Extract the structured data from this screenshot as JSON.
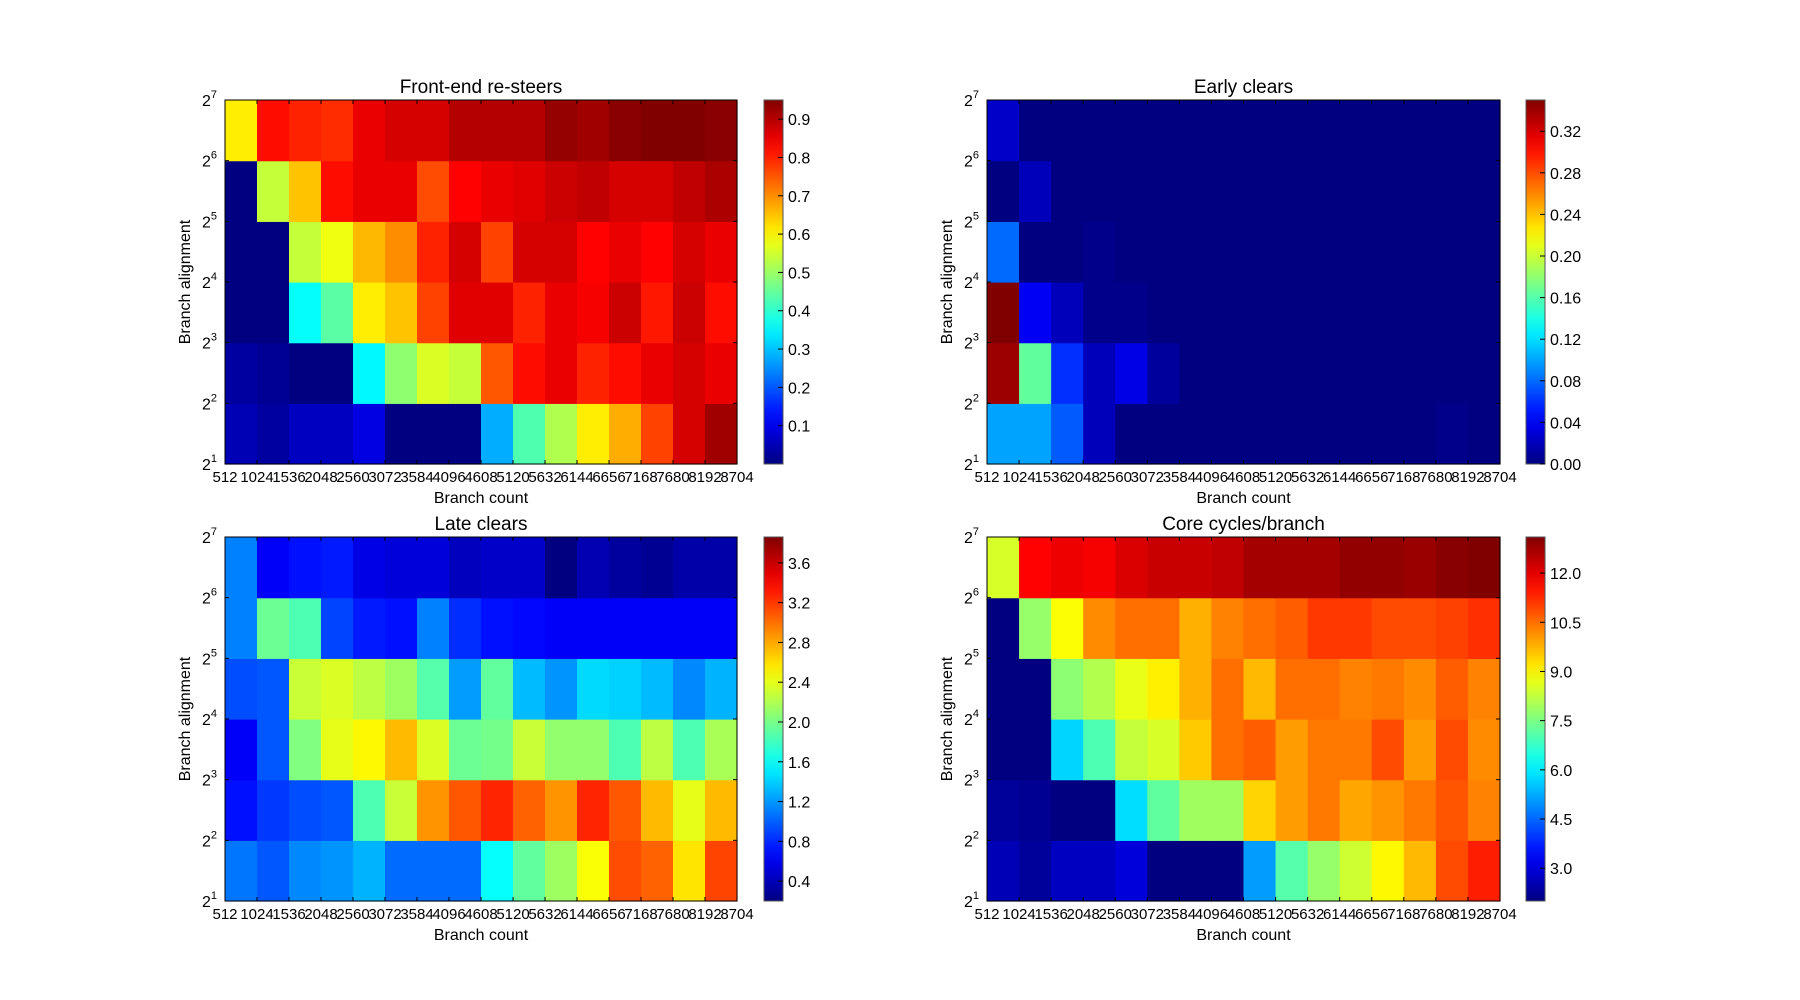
{
  "figure": {
    "type": "heatmap-grid",
    "colormap": "jet"
  },
  "chart_data": [
    {
      "type": "heatmap",
      "title": "Front-end re-steers",
      "xlabel": "Branch count",
      "ylabel": "Branch alignment",
      "x_tick_labels": [
        "512",
        "1024",
        "1536",
        "2048",
        "2560",
        "3072",
        "3584",
        "4096",
        "4608",
        "5120",
        "5632",
        "6144",
        "6656",
        "7168",
        "7680",
        "8192",
        "8704"
      ],
      "y_tick_labels": [
        {
          "base": "2",
          "exp": "1"
        },
        {
          "base": "2",
          "exp": "2"
        },
        {
          "base": "2",
          "exp": "3"
        },
        {
          "base": "2",
          "exp": "4"
        },
        {
          "base": "2",
          "exp": "5"
        },
        {
          "base": "2",
          "exp": "6"
        },
        {
          "base": "2",
          "exp": "7"
        }
      ],
      "colorbar": {
        "range": [
          0.0,
          0.95
        ],
        "ticks": [
          "0.1",
          "0.2",
          "0.3",
          "0.4",
          "0.5",
          "0.6",
          "0.7",
          "0.8",
          "0.9"
        ]
      },
      "rows_bottom_to_top": [
        [
          0.05,
          0.03,
          0.06,
          0.06,
          0.09,
          0.0,
          0.0,
          0.0,
          0.28,
          0.43,
          0.52,
          0.61,
          0.67,
          0.77,
          0.87,
          0.92
        ],
        [
          0.03,
          0.02,
          0.0,
          0.0,
          0.35,
          0.49,
          0.56,
          0.54,
          0.75,
          0.82,
          0.85,
          0.8,
          0.82,
          0.85,
          0.87,
          0.85
        ],
        [
          0.0,
          0.0,
          0.36,
          0.44,
          0.61,
          0.65,
          0.77,
          0.86,
          0.86,
          0.8,
          0.85,
          0.84,
          0.88,
          0.81,
          0.88,
          0.82
        ],
        [
          0.0,
          0.0,
          0.54,
          0.58,
          0.66,
          0.7,
          0.8,
          0.87,
          0.77,
          0.87,
          0.87,
          0.83,
          0.85,
          0.83,
          0.87,
          0.85
        ],
        [
          0.0,
          0.54,
          0.65,
          0.82,
          0.85,
          0.85,
          0.76,
          0.83,
          0.85,
          0.86,
          0.88,
          0.89,
          0.87,
          0.87,
          0.89,
          0.91
        ],
        [
          0.61,
          0.82,
          0.8,
          0.79,
          0.85,
          0.87,
          0.87,
          0.9,
          0.9,
          0.9,
          0.93,
          0.92,
          0.94,
          0.95,
          0.95,
          0.94
        ]
      ]
    },
    {
      "type": "heatmap",
      "title": "Early clears",
      "xlabel": "Branch count",
      "ylabel": "Branch alignment",
      "x_tick_labels": [
        "512",
        "1024",
        "1536",
        "2048",
        "2560",
        "3072",
        "3584",
        "4096",
        "4608",
        "5120",
        "5632",
        "6144",
        "6656",
        "7168",
        "7680",
        "8192",
        "8704"
      ],
      "y_tick_labels": [
        {
          "base": "2",
          "exp": "1"
        },
        {
          "base": "2",
          "exp": "2"
        },
        {
          "base": "2",
          "exp": "3"
        },
        {
          "base": "2",
          "exp": "4"
        },
        {
          "base": "2",
          "exp": "5"
        },
        {
          "base": "2",
          "exp": "6"
        },
        {
          "base": "2",
          "exp": "7"
        }
      ],
      "colorbar": {
        "range": [
          0.0,
          0.35
        ],
        "ticks": [
          "0.00",
          "0.04",
          "0.08",
          "0.12",
          "0.16",
          "0.20",
          "0.24",
          "0.28",
          "0.32"
        ]
      },
      "rows_bottom_to_top": [
        [
          0.1,
          0.1,
          0.075,
          0.02,
          0.0,
          0.0,
          0.0,
          0.0,
          0.0,
          0.0,
          0.0,
          0.0,
          0.0,
          0.0,
          0.004,
          0.0
        ],
        [
          0.34,
          0.165,
          0.06,
          0.02,
          0.035,
          0.01,
          0.0,
          0.0,
          0.0,
          0.0,
          0.0,
          0.0,
          0.0,
          0.0,
          0.0,
          0.0
        ],
        [
          0.35,
          0.04,
          0.02,
          0.004,
          0.004,
          0.0,
          0.0,
          0.0,
          0.0,
          0.0,
          0.0,
          0.0,
          0.0,
          0.0,
          0.0,
          0.0
        ],
        [
          0.08,
          0.0,
          0.0,
          0.004,
          0.0,
          0.0,
          0.0,
          0.0,
          0.0,
          0.0,
          0.0,
          0.0,
          0.0,
          0.0,
          0.0,
          0.0
        ],
        [
          0.0,
          0.02,
          0.0,
          0.0,
          0.0,
          0.0,
          0.0,
          0.0,
          0.0,
          0.0,
          0.0,
          0.0,
          0.0,
          0.0,
          0.0,
          0.0
        ],
        [
          0.025,
          0.0,
          0.0,
          0.0,
          0.0,
          0.0,
          0.0,
          0.0,
          0.0,
          0.0,
          0.0,
          0.0,
          0.0,
          0.0,
          0.0,
          0.0
        ]
      ]
    },
    {
      "type": "heatmap",
      "title": "Late clears",
      "xlabel": "Branch count",
      "ylabel": "Branch alignment",
      "x_tick_labels": [
        "512",
        "1024",
        "1536",
        "2048",
        "2560",
        "3072",
        "3584",
        "4096",
        "4608",
        "5120",
        "5632",
        "6144",
        "6656",
        "7168",
        "7680",
        "8192",
        "8704"
      ],
      "y_tick_labels": [
        {
          "base": "2",
          "exp": "1"
        },
        {
          "base": "2",
          "exp": "2"
        },
        {
          "base": "2",
          "exp": "3"
        },
        {
          "base": "2",
          "exp": "4"
        },
        {
          "base": "2",
          "exp": "5"
        },
        {
          "base": "2",
          "exp": "6"
        },
        {
          "base": "2",
          "exp": "7"
        }
      ],
      "colorbar": {
        "range": [
          0.2,
          3.86
        ],
        "ticks": [
          "0.4",
          "0.8",
          "1.2",
          "1.6",
          "2.0",
          "2.4",
          "2.8",
          "3.2",
          "3.6"
        ]
      },
      "rows_bottom_to_top": [
        [
          1.08,
          0.97,
          1.15,
          1.19,
          1.3,
          1.04,
          1.04,
          1.04,
          1.59,
          1.92,
          2.14,
          2.47,
          3.13,
          3.05,
          2.58,
          3.16
        ],
        [
          0.71,
          0.86,
          0.93,
          0.97,
          1.85,
          2.29,
          2.87,
          3.09,
          3.27,
          3.05,
          2.87,
          3.27,
          3.09,
          2.73,
          2.4,
          2.73
        ],
        [
          0.64,
          0.97,
          2.03,
          2.4,
          2.51,
          2.73,
          2.36,
          1.96,
          1.99,
          2.29,
          2.1,
          2.1,
          1.85,
          2.25,
          1.85,
          2.18
        ],
        [
          0.93,
          0.97,
          2.29,
          2.36,
          2.25,
          2.14,
          1.88,
          1.22,
          1.92,
          1.33,
          1.19,
          1.44,
          1.41,
          1.33,
          1.15,
          1.3
        ],
        [
          1.12,
          1.96,
          1.85,
          0.9,
          0.75,
          0.71,
          1.12,
          0.82,
          0.71,
          0.68,
          0.64,
          0.64,
          0.64,
          0.64,
          0.64,
          0.64
        ],
        [
          1.12,
          0.64,
          0.71,
          0.75,
          0.57,
          0.53,
          0.53,
          0.42,
          0.46,
          0.46,
          0.2,
          0.38,
          0.31,
          0.27,
          0.35,
          0.35
        ]
      ]
    },
    {
      "type": "heatmap",
      "title": "Core cycles/branch",
      "xlabel": "Branch count",
      "ylabel": "Branch alignment",
      "x_tick_labels": [
        "512",
        "1024",
        "1536",
        "2048",
        "2560",
        "3072",
        "3584",
        "4096",
        "4608",
        "5120",
        "5632",
        "6144",
        "6656",
        "7168",
        "7680",
        "8192",
        "8704"
      ],
      "y_tick_labels": [
        {
          "base": "2",
          "exp": "1"
        },
        {
          "base": "2",
          "exp": "2"
        },
        {
          "base": "2",
          "exp": "3"
        },
        {
          "base": "2",
          "exp": "4"
        },
        {
          "base": "2",
          "exp": "5"
        },
        {
          "base": "2",
          "exp": "6"
        },
        {
          "base": "2",
          "exp": "7"
        }
      ],
      "colorbar": {
        "range": [
          2.0,
          13.1
        ],
        "ticks": [
          "3.0",
          "4.5",
          "6.0",
          "7.5",
          "9.0",
          "10.5",
          "12.0"
        ]
      },
      "rows_bottom_to_top": [
        [
          2.6,
          2.3,
          2.7,
          2.7,
          3.0,
          2.0,
          2.0,
          2.0,
          5.1,
          7.1,
          7.8,
          8.4,
          9.0,
          9.7,
          10.9,
          11.4
        ],
        [
          2.3,
          2.2,
          2.0,
          2.0,
          5.8,
          7.2,
          7.9,
          7.9,
          9.4,
          10.0,
          10.4,
          9.9,
          10.1,
          10.4,
          10.8,
          10.3
        ],
        [
          2.0,
          2.0,
          5.7,
          7.0,
          8.3,
          8.5,
          9.5,
          10.5,
          10.7,
          10.0,
          10.4,
          10.4,
          10.9,
          10.0,
          10.9,
          10.2
        ],
        [
          2.0,
          2.0,
          7.7,
          8.1,
          8.7,
          9.1,
          9.8,
          10.5,
          9.7,
          10.5,
          10.5,
          10.3,
          10.4,
          10.2,
          10.7,
          10.3
        ],
        [
          2.0,
          7.8,
          8.9,
          10.2,
          10.5,
          10.5,
          9.8,
          10.3,
          10.5,
          10.7,
          11.1,
          11.1,
          10.9,
          10.9,
          11.0,
          11.2
        ],
        [
          8.5,
          11.7,
          11.9,
          11.8,
          12.1,
          12.3,
          12.3,
          12.4,
          12.7,
          12.7,
          12.7,
          12.9,
          12.9,
          12.8,
          13.0,
          13.1
        ]
      ]
    }
  ]
}
